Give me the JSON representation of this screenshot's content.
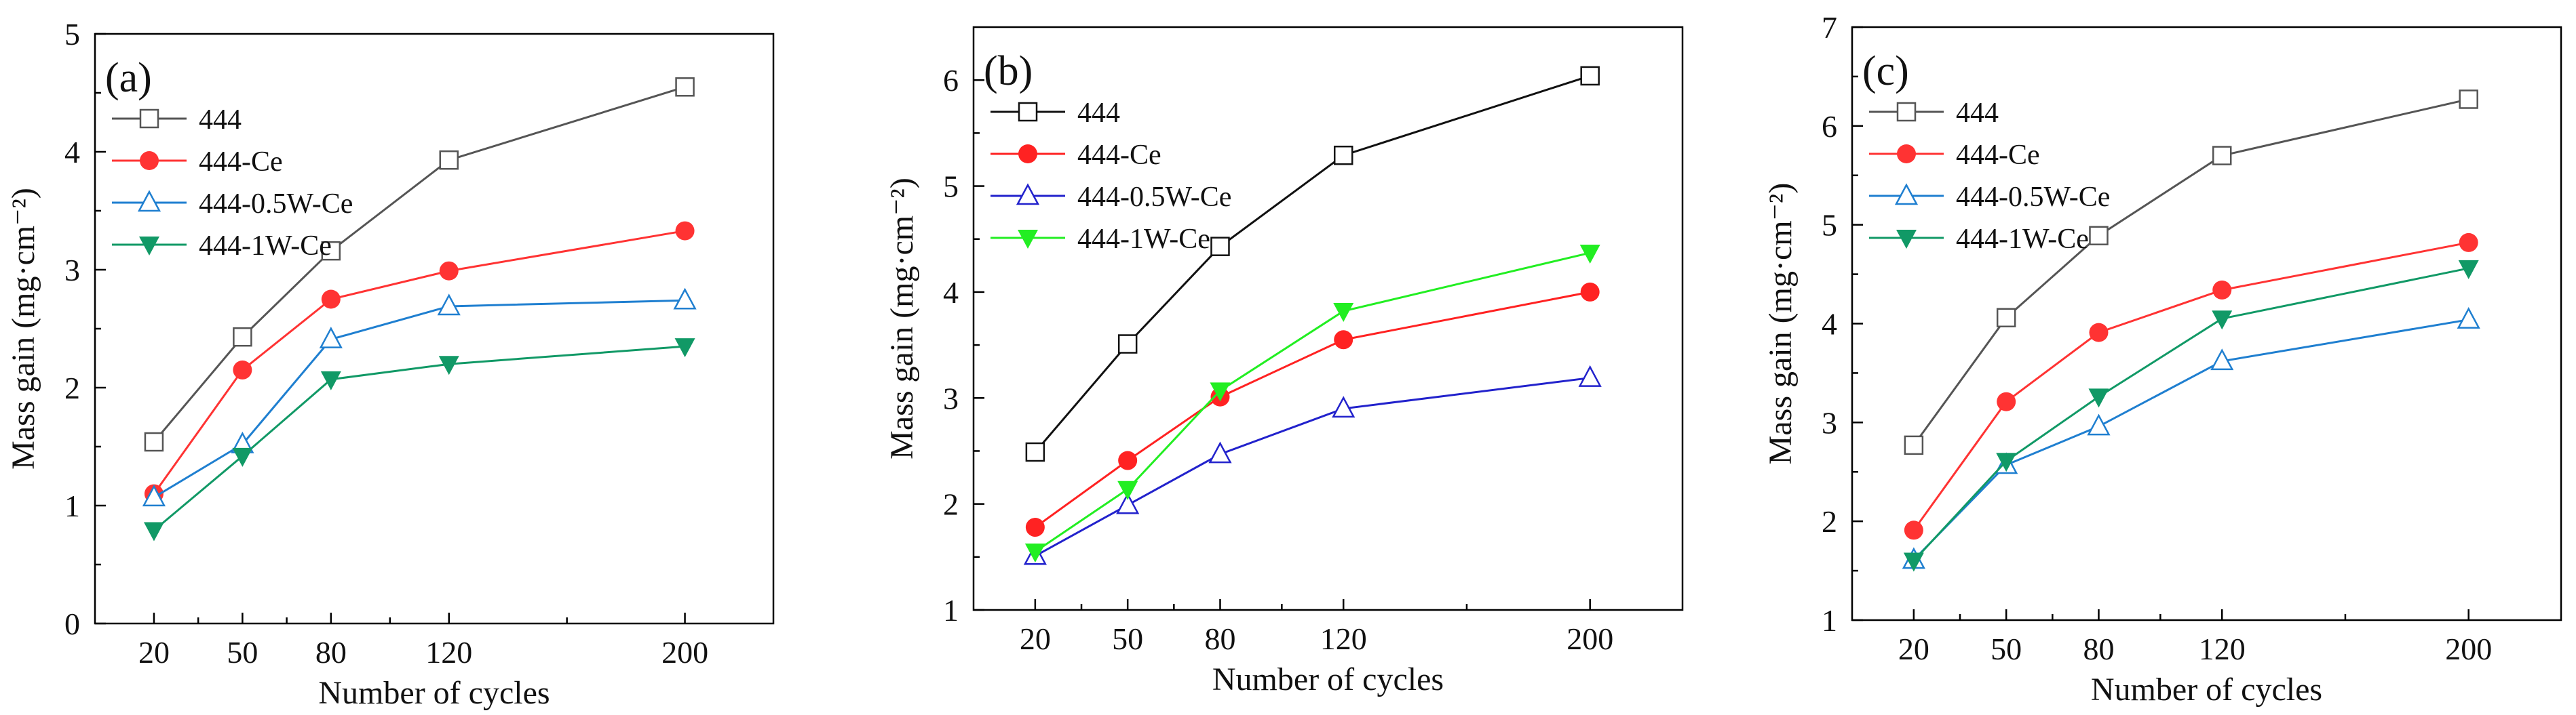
{
  "chart_data": [
    {
      "type": "line",
      "panel_label": "(a)",
      "xlabel": "Number of cycles",
      "ylabel": "Mass gain (mg·cm⁻²)",
      "x": [
        20,
        50,
        80,
        120,
        200
      ],
      "x_ticks": [
        "20",
        "50",
        "80",
        "120",
        "200"
      ],
      "xlim": [
        0,
        230
      ],
      "ylim": [
        0,
        5
      ],
      "y_ticks": [
        "0",
        "1",
        "2",
        "3",
        "4",
        "5"
      ],
      "legend_position": "top-left",
      "series": [
        {
          "name": "444",
          "marker": "square-open",
          "color": "#555555",
          "values": [
            1.54,
            2.43,
            3.16,
            3.93,
            4.55
          ]
        },
        {
          "name": "444-Ce",
          "marker": "circle-filled",
          "color": "#ff3333",
          "values": [
            1.1,
            2.15,
            2.75,
            2.99,
            3.33
          ]
        },
        {
          "name": "444-0.5W-Ce",
          "marker": "triangle-up-open",
          "color": "#1f7fd0",
          "values": [
            1.07,
            1.52,
            2.41,
            2.69,
            2.74
          ]
        },
        {
          "name": "444-1W-Ce",
          "marker": "triangle-down-filled",
          "color": "#119966",
          "values": [
            0.79,
            1.42,
            2.07,
            2.2,
            2.35
          ]
        }
      ]
    },
    {
      "type": "line",
      "panel_label": "(b)",
      "xlabel": "Number of cycles",
      "ylabel": "Mass gain (mg·cm⁻²)",
      "x": [
        20,
        50,
        80,
        120,
        200
      ],
      "x_ticks": [
        "20",
        "50",
        "80",
        "120",
        "200"
      ],
      "xlim": [
        0,
        230
      ],
      "ylim": [
        1,
        6.5
      ],
      "y_ticks": [
        "1",
        "2",
        "3",
        "4",
        "5",
        "6"
      ],
      "legend_position": "top-left",
      "series": [
        {
          "name": "444",
          "marker": "square-open",
          "color": "#111111",
          "values": [
            2.49,
            3.51,
            4.43,
            5.29,
            6.04
          ]
        },
        {
          "name": "444-Ce",
          "marker": "circle-filled",
          "color": "#ff2222",
          "values": [
            1.78,
            2.41,
            3.01,
            3.55,
            4.0
          ]
        },
        {
          "name": "444-0.5W-Ce",
          "marker": "triangle-up-open",
          "color": "#2222cc",
          "values": [
            1.51,
            1.99,
            2.47,
            2.9,
            3.19
          ]
        },
        {
          "name": "444-1W-Ce",
          "marker": "triangle-down-filled",
          "color": "#22ee22",
          "values": [
            1.55,
            2.14,
            3.07,
            3.82,
            4.37
          ]
        }
      ]
    },
    {
      "type": "line",
      "panel_label": "(c)",
      "xlabel": "Number of cycles",
      "ylabel": "Mass gain (mg·cm⁻²)",
      "x": [
        20,
        50,
        80,
        120,
        200
      ],
      "x_ticks": [
        "20",
        "50",
        "80",
        "120",
        "200"
      ],
      "xlim": [
        0,
        230
      ],
      "ylim": [
        1,
        7
      ],
      "y_ticks": [
        "1",
        "2",
        "3",
        "4",
        "5",
        "6",
        "7"
      ],
      "legend_position": "top-left",
      "series": [
        {
          "name": "444",
          "marker": "square-open",
          "color": "#555555",
          "values": [
            2.77,
            4.06,
            4.89,
            5.7,
            6.27
          ]
        },
        {
          "name": "444-Ce",
          "marker": "circle-filled",
          "color": "#ff3333",
          "values": [
            1.91,
            3.21,
            3.91,
            4.34,
            4.82
          ]
        },
        {
          "name": "444-0.5W-Ce",
          "marker": "triangle-up-open",
          "color": "#1f7fd0",
          "values": [
            1.61,
            2.57,
            2.96,
            3.62,
            4.04
          ]
        },
        {
          "name": "444-1W-Ce",
          "marker": "triangle-down-filled",
          "color": "#119966",
          "values": [
            1.6,
            2.61,
            3.26,
            4.05,
            4.56
          ]
        }
      ]
    }
  ]
}
